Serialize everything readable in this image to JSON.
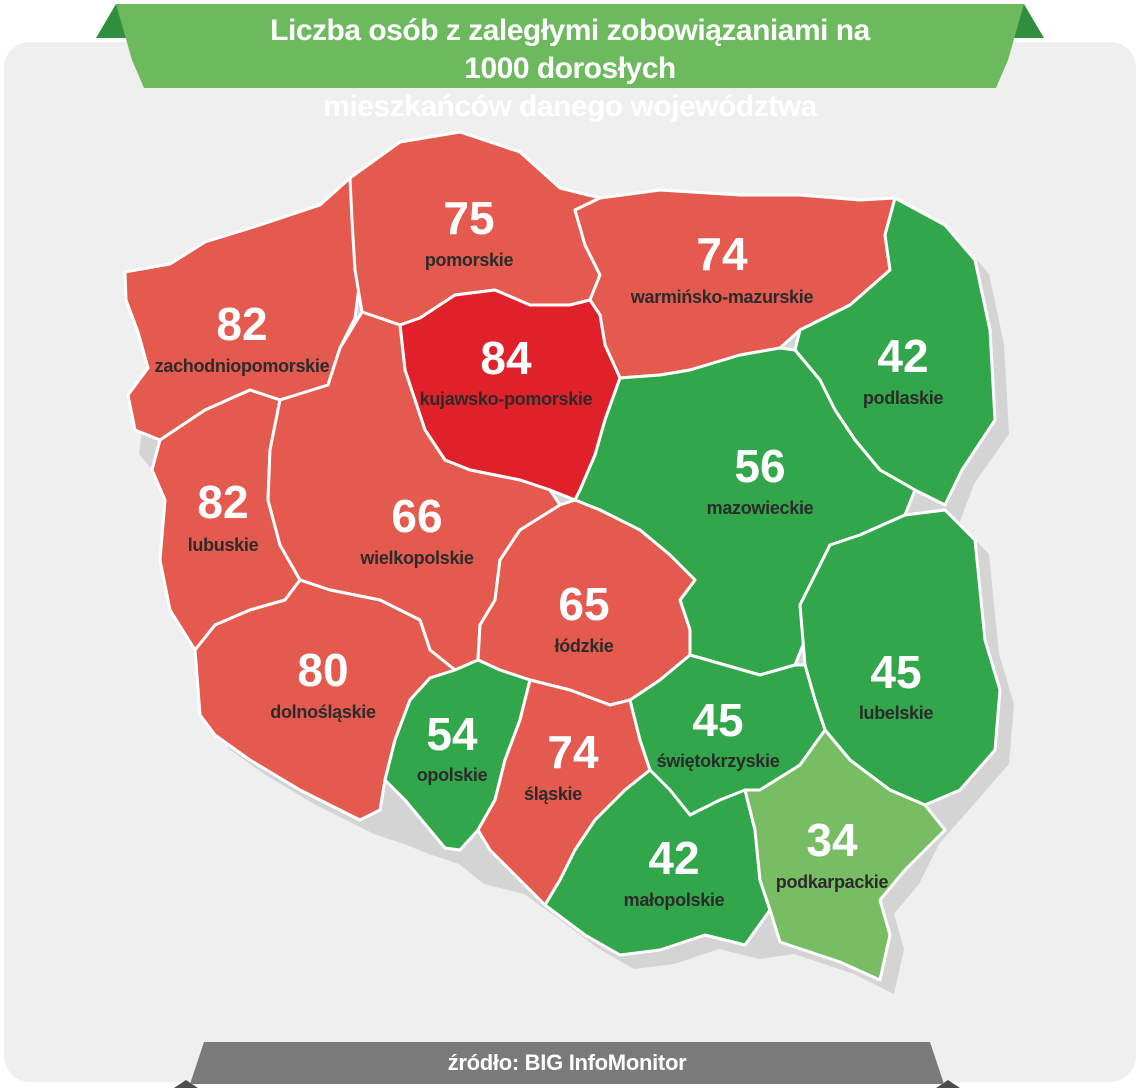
{
  "title": "Liczba osób z zaległymi zobowiązaniami na 1000 dorosłych\nmieszkańców danego województwa",
  "source": "źródło: BIG InfoMonitor",
  "colors": {
    "red": "#e55a4e",
    "dark_red": "#e0212a",
    "green": "#32a64a",
    "light_green": "#78bd64",
    "header_green": "#6cb95e",
    "footer_gray": "#7a7a7a",
    "background": "#efefef"
  },
  "regions": [
    {
      "id": "pomorskie",
      "label": "pomorskie",
      "value": "75",
      "color": "red"
    },
    {
      "id": "warminsko-mazurskie",
      "label": "warmińsko-mazurskie",
      "value": "74",
      "color": "red"
    },
    {
      "id": "zachodniopomorskie",
      "label": "zachodniopomorskie",
      "value": "82",
      "color": "red"
    },
    {
      "id": "kujawsko-pomorskie",
      "label": "kujawsko-pomorskie",
      "value": "84",
      "color": "dark_red"
    },
    {
      "id": "podlaskie",
      "label": "podlaskie",
      "value": "42",
      "color": "green"
    },
    {
      "id": "mazowieckie",
      "label": "mazowieckie",
      "value": "56",
      "color": "green"
    },
    {
      "id": "lubuskie",
      "label": "lubuskie",
      "value": "82",
      "color": "red"
    },
    {
      "id": "wielkopolskie",
      "label": "wielkopolskie",
      "value": "66",
      "color": "red"
    },
    {
      "id": "lodzkie",
      "label": "łódzkie",
      "value": "65",
      "color": "red"
    },
    {
      "id": "lubelskie",
      "label": "lubelskie",
      "value": "45",
      "color": "green"
    },
    {
      "id": "dolnoslaskie",
      "label": "dolnośląskie",
      "value": "80",
      "color": "red"
    },
    {
      "id": "opolskie",
      "label": "opolskie",
      "value": "54",
      "color": "green"
    },
    {
      "id": "slaskie",
      "label": "śląskie",
      "value": "74",
      "color": "red"
    },
    {
      "id": "swietokrzyskie",
      "label": "świętokrzyskie",
      "value": "45",
      "color": "green"
    },
    {
      "id": "malopolskie",
      "label": "małopolskie",
      "value": "42",
      "color": "green"
    },
    {
      "id": "podkarpackie",
      "label": "podkarpackie",
      "value": "34",
      "color": "light_green"
    }
  ]
}
